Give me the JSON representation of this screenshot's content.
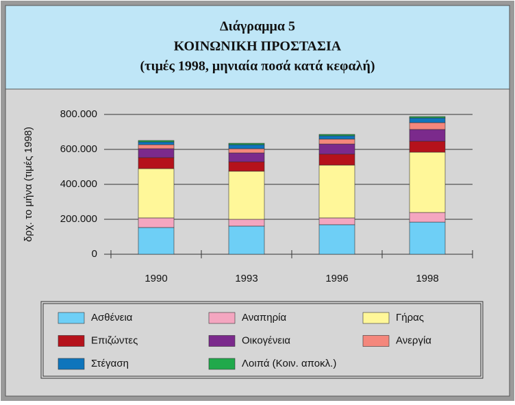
{
  "chart_data": {
    "type": "stacked_bar",
    "title": [
      "Διάγραμμα 5",
      "ΚΟΙΝΩΝΙΚΗ ΠΡΟΣΤΑΣΙΑ",
      "(τιμές 1998, μηνιαία ποσά κατά κεφαλή)"
    ],
    "ylabel": "δρχ. το μήνα (τιμές 1998)",
    "categories": [
      "1990",
      "1993",
      "1996",
      "1998"
    ],
    "ylim": [
      0,
      800000
    ],
    "yticks": [
      0,
      {
        "value": 200000,
        "label": "200.000"
      },
      {
        "value": 400000,
        "label": "400.000"
      },
      {
        "value": 600000,
        "label": "600.000"
      },
      {
        "value": 800000,
        "label": "800.000"
      }
    ],
    "grid": true,
    "series": [
      {
        "name": "Ασθένεια",
        "color": "#6ecff6",
        "values": [
          153000,
          161000,
          169000,
          184000
        ]
      },
      {
        "name": "Αναπηρία",
        "color": "#f4a6c0",
        "values": [
          55000,
          39000,
          39000,
          55000
        ]
      },
      {
        "name": "Γήρας",
        "color": "#fff799",
        "values": [
          282000,
          275000,
          302000,
          345000
        ]
      },
      {
        "name": "Επιζώντες",
        "color": "#b5121b",
        "values": [
          63000,
          54000,
          63000,
          63000
        ]
      },
      {
        "name": "Οικογένεια",
        "color": "#7b2a8c",
        "values": [
          51000,
          51000,
          58000,
          67000
        ]
      },
      {
        "name": "Ανεργία",
        "color": "#f4877c",
        "values": [
          23000,
          24000,
          28000,
          39000
        ]
      },
      {
        "name": "Στέγαση",
        "color": "#0f75bc",
        "values": [
          16000,
          23000,
          19000,
          27000
        ]
      },
      {
        "name": "Λοιπά (Κοιν. αποκλ.)",
        "color": "#20a94b",
        "values": [
          8000,
          8000,
          8000,
          8000
        ]
      }
    ]
  }
}
